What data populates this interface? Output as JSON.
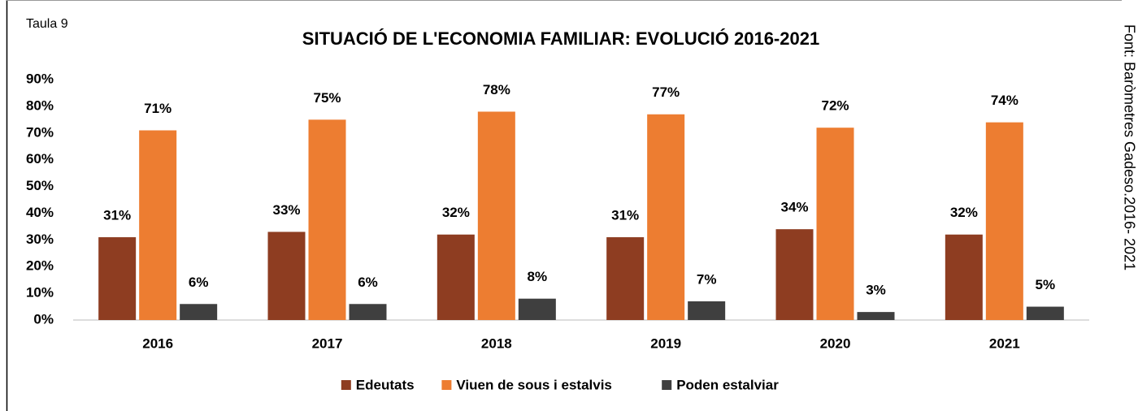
{
  "chart_data": {
    "type": "bar",
    "note": "Taula 9",
    "title": "SITUACIÓ DE L'ECONOMIA FAMILIAR: EVOLUCIÓ 2016-2021",
    "source": "Font: Baròmetres Gadeso.2016- 2021",
    "categories": [
      "2016",
      "2017",
      "2018",
      "2019",
      "2020",
      "2021"
    ],
    "series": [
      {
        "name": "Edeutats",
        "color": "#8e3d21",
        "values": [
          31,
          33,
          32,
          31,
          34,
          32
        ],
        "value_labels": [
          "31%",
          "33%",
          "32%",
          "31%",
          "34%",
          "32%"
        ]
      },
      {
        "name": "Viuen de sous i estalvis",
        "color": "#ed7d31",
        "values": [
          71,
          75,
          78,
          77,
          72,
          74
        ],
        "value_labels": [
          "71%",
          "75%",
          "78%",
          "77%",
          "72%",
          "74%"
        ]
      },
      {
        "name": "Poden estalviar",
        "color": "#3f3f3f",
        "values": [
          6,
          6,
          8,
          7,
          3,
          5
        ],
        "value_labels": [
          "6%",
          "6%",
          "8%",
          "7%",
          "3%",
          "5%"
        ]
      }
    ],
    "ylim": [
      0,
      90
    ],
    "yticks": [
      {
        "value": 0,
        "label": "0%"
      },
      {
        "value": 10,
        "label": "10%"
      },
      {
        "value": 20,
        "label": "20%"
      },
      {
        "value": 30,
        "label": "30%"
      },
      {
        "value": 40,
        "label": "40%"
      },
      {
        "value": 50,
        "label": "50%"
      },
      {
        "value": 60,
        "label": "60%"
      },
      {
        "value": 70,
        "label": "70%"
      },
      {
        "value": 80,
        "label": "80%"
      },
      {
        "value": 90,
        "label": "90%"
      }
    ],
    "grid": false,
    "legend": "bottom"
  }
}
